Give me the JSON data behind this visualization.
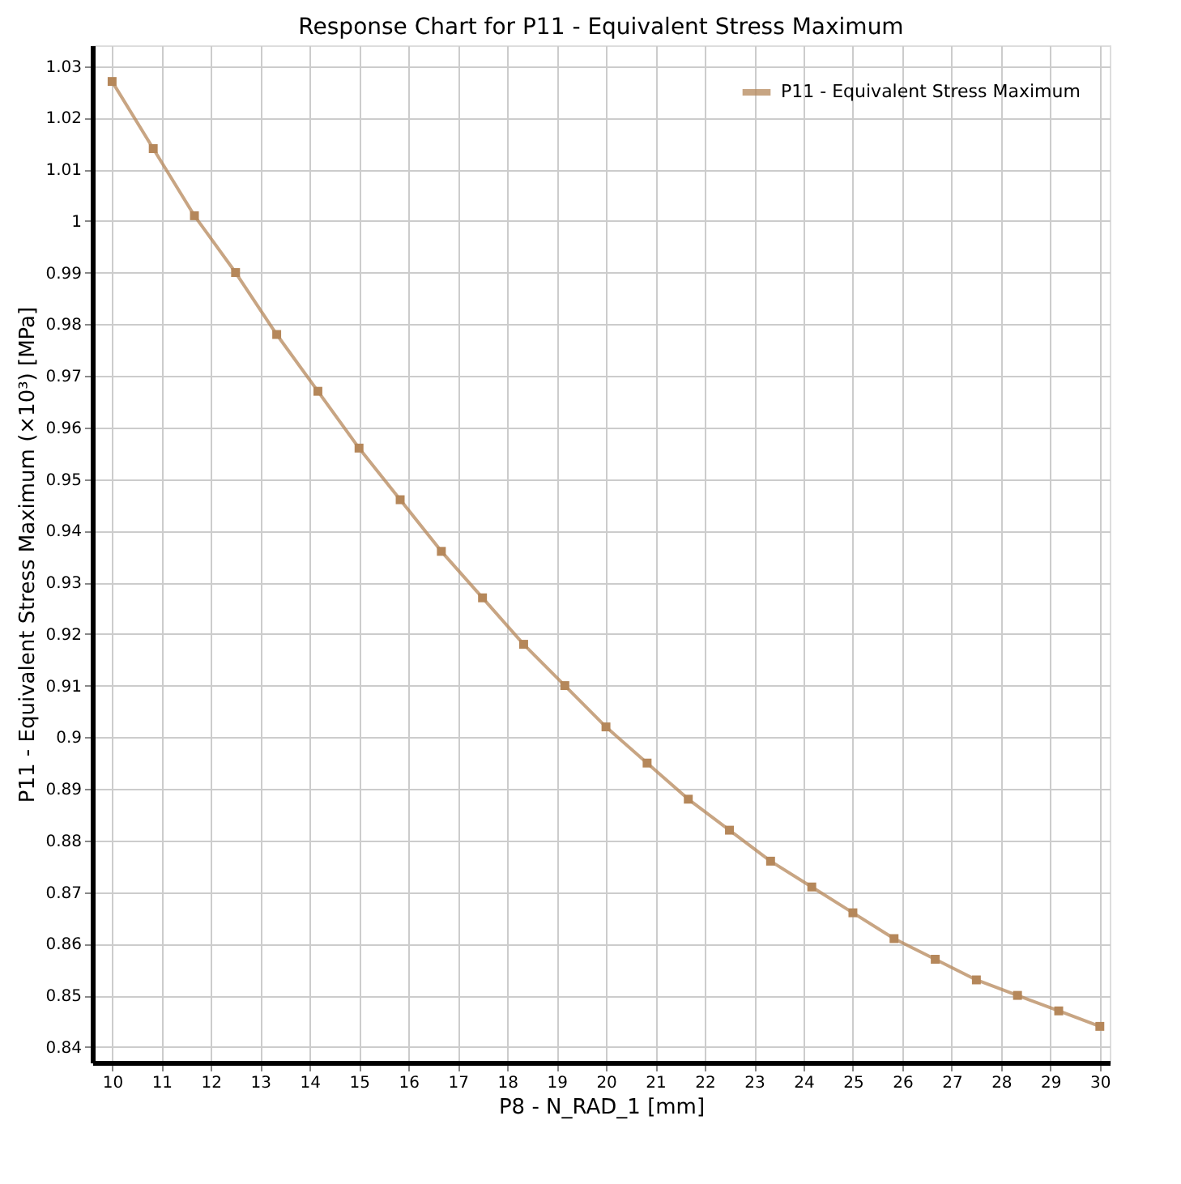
{
  "chart_data": {
    "type": "line",
    "title": "Response Chart for P11 - Equivalent Stress Maximum",
    "xlabel": "P8 - N_RAD_1  [mm]",
    "ylabel": "P11 - Equivalent Stress Maximum  (×10³)  [MPa]",
    "x": [
      10,
      10.833,
      11.667,
      12.5,
      13.333,
      14.167,
      15,
      15.833,
      16.667,
      17.5,
      18.333,
      19.167,
      20,
      20.833,
      21.667,
      22.5,
      23.333,
      24.167,
      25,
      25.833,
      26.667,
      27.5,
      28.333,
      29.167,
      30
    ],
    "series": [
      {
        "name": "P11 - Equivalent Stress Maximum",
        "color": "#b5875a",
        "values": [
          1.027,
          1.014,
          1.001,
          0.99,
          0.978,
          0.967,
          0.956,
          0.946,
          0.936,
          0.927,
          0.918,
          0.91,
          0.902,
          0.895,
          0.888,
          0.882,
          0.876,
          0.871,
          0.866,
          0.861,
          0.857,
          0.853,
          0.85,
          0.847,
          0.844
        ]
      }
    ],
    "xlim": [
      9.6,
      30.2
    ],
    "ylim": [
      0.837,
      1.034
    ],
    "xticks": [
      10,
      11,
      12,
      13,
      14,
      15,
      16,
      17,
      18,
      19,
      20,
      21,
      22,
      23,
      24,
      25,
      26,
      27,
      28,
      29,
      30
    ],
    "yticks": [
      0.84,
      0.85,
      0.86,
      0.87,
      0.88,
      0.89,
      {
        "value": 0.9,
        "label": "0.9"
      },
      0.91,
      0.92,
      0.93,
      0.94,
      0.95,
      0.96,
      0.97,
      0.98,
      0.99,
      {
        "value": 1,
        "label": "1"
      },
      1.01,
      1.02,
      1.03
    ],
    "grid": true,
    "legend": "top right",
    "marker": "square",
    "line_style": "solid"
  }
}
